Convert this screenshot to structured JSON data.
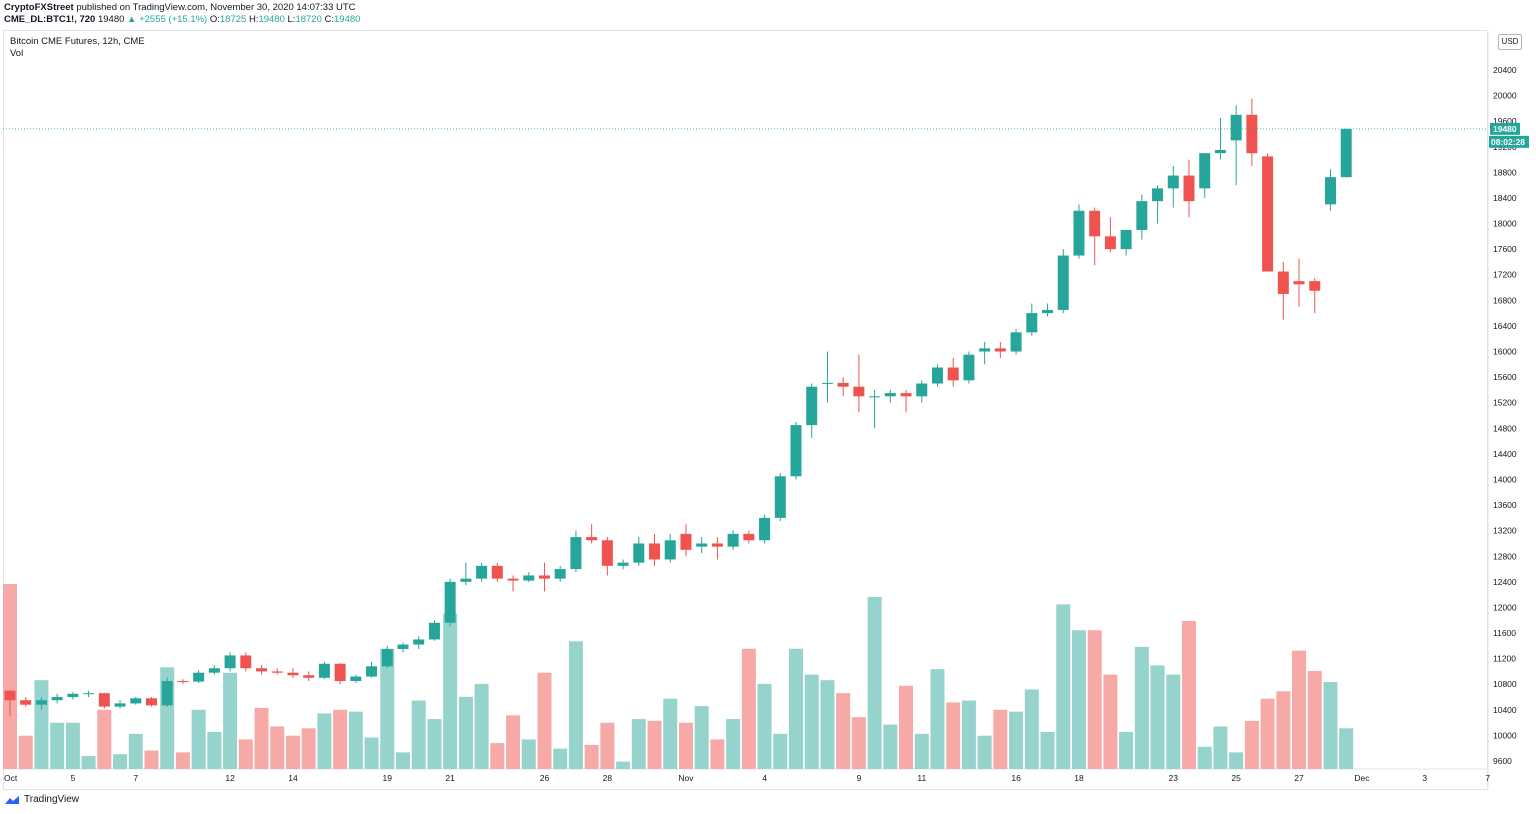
{
  "header": {
    "author": "CryptoFXStreet",
    "published": "published on TradingView.com, November 30, 2020 14:07:33 UTC",
    "symbol_line": {
      "symbol": "CME_DL:BTC1!, 720",
      "last": "19480",
      "change": "+2555 (+15.1%)",
      "o_label": "O:",
      "o": "18725",
      "h_label": "H:",
      "h": "19480",
      "l_label": "L:",
      "l": "18720",
      "c_label": "C:",
      "c": "19480"
    }
  },
  "legend": {
    "title": "Bitcoin CME Futures, 12h, CME",
    "vol": "Vol"
  },
  "currency": "USD",
  "price_tag": "19480",
  "countdown": "08:02:28",
  "brand": "TradingView",
  "colors": {
    "up": "#26a69a",
    "down": "#ef5350",
    "vol_up": "#96d3cc",
    "vol_down": "#f6a9a6",
    "tag": "#26a69a",
    "grid": "#e0e3eb"
  },
  "chart_data": {
    "type": "candlestick",
    "ylim": [
      9400,
      20800
    ],
    "y_ticks": [
      9600,
      10000,
      10400,
      10800,
      11200,
      11600,
      12000,
      12400,
      12800,
      13200,
      13600,
      14000,
      14400,
      14800,
      15200,
      15600,
      16000,
      16400,
      16800,
      17200,
      17600,
      18000,
      18400,
      18800,
      19200,
      19600,
      20000,
      20400
    ],
    "x_labels": [
      {
        "label": "Oct",
        "slot": 0
      },
      {
        "label": "5",
        "slot": 4
      },
      {
        "label": "7",
        "slot": 8
      },
      {
        "label": "12",
        "slot": 14
      },
      {
        "label": "14",
        "slot": 18
      },
      {
        "label": "19",
        "slot": 24
      },
      {
        "label": "21",
        "slot": 28
      },
      {
        "label": "26",
        "slot": 34
      },
      {
        "label": "28",
        "slot": 38
      },
      {
        "label": "Nov",
        "slot": 43
      },
      {
        "label": "4",
        "slot": 48
      },
      {
        "label": "9",
        "slot": 54
      },
      {
        "label": "11",
        "slot": 58
      },
      {
        "label": "16",
        "slot": 64
      },
      {
        "label": "18",
        "slot": 68
      },
      {
        "label": "23",
        "slot": 74
      },
      {
        "label": "25",
        "slot": 78
      },
      {
        "label": "27",
        "slot": 82
      },
      {
        "label": "Dec",
        "slot": 86
      },
      {
        "label": "3",
        "slot": 90
      },
      {
        "label": "7",
        "slot": 94
      }
    ],
    "candles": [
      {
        "slot": 0,
        "o": 10700,
        "h": 10700,
        "l": 10300,
        "c": 10550,
        "v": 100
      },
      {
        "slot": 1,
        "o": 10550,
        "h": 10600,
        "l": 10450,
        "c": 10480,
        "v": 18
      },
      {
        "slot": 2,
        "o": 10480,
        "h": 10600,
        "l": 10400,
        "c": 10550,
        "v": 48
      },
      {
        "slot": 3,
        "o": 10550,
        "h": 10650,
        "l": 10500,
        "c": 10600,
        "v": 25
      },
      {
        "slot": 4,
        "o": 10600,
        "h": 10680,
        "l": 10560,
        "c": 10650,
        "v": 25
      },
      {
        "slot": 5,
        "o": 10650,
        "h": 10700,
        "l": 10600,
        "c": 10660,
        "v": 7
      },
      {
        "slot": 6,
        "o": 10660,
        "h": 10670,
        "l": 10420,
        "c": 10450,
        "v": 32
      },
      {
        "slot": 7,
        "o": 10450,
        "h": 10550,
        "l": 10420,
        "c": 10500,
        "v": 8
      },
      {
        "slot": 8,
        "o": 10500,
        "h": 10600,
        "l": 10480,
        "c": 10580,
        "v": 19
      },
      {
        "slot": 9,
        "o": 10580,
        "h": 10600,
        "l": 10450,
        "c": 10470,
        "v": 10
      },
      {
        "slot": 10,
        "o": 10470,
        "h": 10900,
        "l": 10450,
        "c": 10850,
        "v": 55
      },
      {
        "slot": 11,
        "o": 10850,
        "h": 10880,
        "l": 10800,
        "c": 10840,
        "v": 9
      },
      {
        "slot": 12,
        "o": 10840,
        "h": 11020,
        "l": 10820,
        "c": 10980,
        "v": 32
      },
      {
        "slot": 13,
        "o": 10980,
        "h": 11100,
        "l": 10950,
        "c": 11050,
        "v": 20
      },
      {
        "slot": 14,
        "o": 11050,
        "h": 11300,
        "l": 11000,
        "c": 11250,
        "v": 52
      },
      {
        "slot": 15,
        "o": 11250,
        "h": 11300,
        "l": 11000,
        "c": 11050,
        "v": 16
      },
      {
        "slot": 16,
        "o": 11050,
        "h": 11100,
        "l": 10950,
        "c": 11000,
        "v": 33
      },
      {
        "slot": 17,
        "o": 11000,
        "h": 11050,
        "l": 10950,
        "c": 10980,
        "v": 23
      },
      {
        "slot": 18,
        "o": 10980,
        "h": 11050,
        "l": 10900,
        "c": 10940,
        "v": 18
      },
      {
        "slot": 19,
        "o": 10940,
        "h": 11000,
        "l": 10850,
        "c": 10900,
        "v": 22
      },
      {
        "slot": 20,
        "o": 10900,
        "h": 11150,
        "l": 10880,
        "c": 11120,
        "v": 30
      },
      {
        "slot": 21,
        "o": 11120,
        "h": 11130,
        "l": 10800,
        "c": 10850,
        "v": 32
      },
      {
        "slot": 22,
        "o": 10850,
        "h": 10950,
        "l": 10820,
        "c": 10920,
        "v": 31
      },
      {
        "slot": 23,
        "o": 10920,
        "h": 11150,
        "l": 10900,
        "c": 11080,
        "v": 17
      },
      {
        "slot": 24,
        "o": 11080,
        "h": 11400,
        "l": 11050,
        "c": 11350,
        "v": 65
      },
      {
        "slot": 25,
        "o": 11350,
        "h": 11450,
        "l": 11300,
        "c": 11420,
        "v": 9
      },
      {
        "slot": 26,
        "o": 11420,
        "h": 11550,
        "l": 11350,
        "c": 11500,
        "v": 37
      },
      {
        "slot": 27,
        "o": 11500,
        "h": 11800,
        "l": 11480,
        "c": 11760,
        "v": 27
      },
      {
        "slot": 28,
        "o": 11760,
        "h": 12450,
        "l": 11700,
        "c": 12400,
        "v": 84
      },
      {
        "slot": 29,
        "o": 12400,
        "h": 12700,
        "l": 12350,
        "c": 12450,
        "v": 39
      },
      {
        "slot": 30,
        "o": 12450,
        "h": 12700,
        "l": 12400,
        "c": 12650,
        "v": 46
      },
      {
        "slot": 31,
        "o": 12650,
        "h": 12700,
        "l": 12400,
        "c": 12450,
        "v": 14
      },
      {
        "slot": 32,
        "o": 12450,
        "h": 12500,
        "l": 12250,
        "c": 12420,
        "v": 29
      },
      {
        "slot": 33,
        "o": 12420,
        "h": 12550,
        "l": 12400,
        "c": 12500,
        "v": 16
      },
      {
        "slot": 34,
        "o": 12500,
        "h": 12700,
        "l": 12250,
        "c": 12450,
        "v": 52
      },
      {
        "slot": 35,
        "o": 12450,
        "h": 12650,
        "l": 12400,
        "c": 12600,
        "v": 11
      },
      {
        "slot": 36,
        "o": 12600,
        "h": 13200,
        "l": 12550,
        "c": 13100,
        "v": 69
      },
      {
        "slot": 37,
        "o": 13100,
        "h": 13300,
        "l": 13000,
        "c": 13050,
        "v": 13
      },
      {
        "slot": 38,
        "o": 13050,
        "h": 13100,
        "l": 12500,
        "c": 12650,
        "v": 25
      },
      {
        "slot": 39,
        "o": 12650,
        "h": 12750,
        "l": 12600,
        "c": 12700,
        "v": 4
      },
      {
        "slot": 40,
        "o": 12700,
        "h": 13100,
        "l": 12650,
        "c": 13000,
        "v": 27
      },
      {
        "slot": 41,
        "o": 13000,
        "h": 13150,
        "l": 12650,
        "c": 12750,
        "v": 26
      },
      {
        "slot": 42,
        "o": 12750,
        "h": 13150,
        "l": 12700,
        "c": 13050,
        "v": 38
      },
      {
        "slot": 43,
        "o": 13150,
        "h": 13300,
        "l": 12800,
        "c": 12900,
        "v": 25
      },
      {
        "slot": 44,
        "o": 12950,
        "h": 13100,
        "l": 12850,
        "c": 13000,
        "v": 34
      },
      {
        "slot": 45,
        "o": 13000,
        "h": 13100,
        "l": 12750,
        "c": 12950,
        "v": 16
      },
      {
        "slot": 46,
        "o": 12950,
        "h": 13200,
        "l": 12900,
        "c": 13150,
        "v": 27
      },
      {
        "slot": 47,
        "o": 13150,
        "h": 13200,
        "l": 13000,
        "c": 13050,
        "v": 65
      },
      {
        "slot": 48,
        "o": 13050,
        "h": 13450,
        "l": 13000,
        "c": 13400,
        "v": 46
      },
      {
        "slot": 49,
        "o": 13400,
        "h": 14100,
        "l": 13350,
        "c": 14050,
        "v": 19
      },
      {
        "slot": 50,
        "o": 14050,
        "h": 14900,
        "l": 14000,
        "c": 14850,
        "v": 65
      },
      {
        "slot": 51,
        "o": 14850,
        "h": 15500,
        "l": 14650,
        "c": 15450,
        "v": 51
      },
      {
        "slot": 52,
        "o": 15500,
        "h": 16000,
        "l": 15200,
        "c": 15510,
        "v": 48
      },
      {
        "slot": 53,
        "o": 15510,
        "h": 15600,
        "l": 15300,
        "c": 15450,
        "v": 41
      },
      {
        "slot": 54,
        "o": 15450,
        "h": 15950,
        "l": 15050,
        "c": 15300,
        "v": 28
      },
      {
        "slot": 55,
        "o": 15300,
        "h": 15400,
        "l": 14800,
        "c": 15300,
        "v": 93
      },
      {
        "slot": 56,
        "o": 15300,
        "h": 15400,
        "l": 15200,
        "c": 15350,
        "v": 24
      },
      {
        "slot": 57,
        "o": 15350,
        "h": 15400,
        "l": 15050,
        "c": 15300,
        "v": 45
      },
      {
        "slot": 58,
        "o": 15300,
        "h": 15550,
        "l": 15200,
        "c": 15500,
        "v": 19
      },
      {
        "slot": 59,
        "o": 15500,
        "h": 15800,
        "l": 15450,
        "c": 15750,
        "v": 54
      },
      {
        "slot": 60,
        "o": 15750,
        "h": 15900,
        "l": 15450,
        "c": 15550,
        "v": 36
      },
      {
        "slot": 61,
        "o": 15550,
        "h": 16000,
        "l": 15500,
        "c": 15950,
        "v": 37
      },
      {
        "slot": 62,
        "o": 16000,
        "h": 16150,
        "l": 15800,
        "c": 16050,
        "v": 18
      },
      {
        "slot": 63,
        "o": 16050,
        "h": 16150,
        "l": 15900,
        "c": 16000,
        "v": 32
      },
      {
        "slot": 64,
        "o": 16000,
        "h": 16350,
        "l": 15950,
        "c": 16300,
        "v": 31
      },
      {
        "slot": 65,
        "o": 16300,
        "h": 16750,
        "l": 16250,
        "c": 16600,
        "v": 43
      },
      {
        "slot": 66,
        "o": 16600,
        "h": 16750,
        "l": 16550,
        "c": 16650,
        "v": 20
      },
      {
        "slot": 67,
        "o": 16650,
        "h": 17600,
        "l": 16600,
        "c": 17500,
        "v": 89
      },
      {
        "slot": 68,
        "o": 17500,
        "h": 18300,
        "l": 17450,
        "c": 18200,
        "v": 75
      },
      {
        "slot": 69,
        "o": 18200,
        "h": 18250,
        "l": 17350,
        "c": 17800,
        "v": 75
      },
      {
        "slot": 70,
        "o": 17800,
        "h": 18100,
        "l": 17550,
        "c": 17600,
        "v": 51
      },
      {
        "slot": 71,
        "o": 17600,
        "h": 17900,
        "l": 17500,
        "c": 17900,
        "v": 20
      },
      {
        "slot": 72,
        "o": 17900,
        "h": 18450,
        "l": 17750,
        "c": 18350,
        "v": 66
      },
      {
        "slot": 73,
        "o": 18350,
        "h": 18600,
        "l": 18000,
        "c": 18550,
        "v": 56
      },
      {
        "slot": 74,
        "o": 18550,
        "h": 18900,
        "l": 18250,
        "c": 18750,
        "v": 51
      },
      {
        "slot": 75,
        "o": 18750,
        "h": 19000,
        "l": 18100,
        "c": 18350,
        "v": 80
      },
      {
        "slot": 76,
        "o": 18550,
        "h": 19100,
        "l": 18400,
        "c": 19100,
        "v": 12
      },
      {
        "slot": 77,
        "o": 19100,
        "h": 19650,
        "l": 19000,
        "c": 19150,
        "v": 23
      },
      {
        "slot": 78,
        "o": 19300,
        "h": 19850,
        "l": 18600,
        "c": 19700,
        "v": 9
      },
      {
        "slot": 79,
        "o": 19700,
        "h": 19950,
        "l": 18900,
        "c": 19100,
        "v": 26
      },
      {
        "slot": 80,
        "o": 19050,
        "h": 19100,
        "l": 17250,
        "c": 17250,
        "v": 38
      },
      {
        "slot": 81,
        "o": 17250,
        "h": 17400,
        "l": 16500,
        "c": 16900,
        "v": 42
      },
      {
        "slot": 82,
        "o": 17100,
        "h": 17450,
        "l": 16700,
        "c": 17050,
        "v": 64
      },
      {
        "slot": 83,
        "o": 17100,
        "h": 17150,
        "l": 16600,
        "c": 16950,
        "v": 53
      },
      {
        "slot": 84,
        "o": 18300,
        "h": 18850,
        "l": 18200,
        "c": 18725,
        "v": 47
      },
      {
        "slot": 85,
        "o": 18725,
        "h": 19480,
        "l": 18720,
        "c": 19480,
        "v": 22
      }
    ]
  }
}
